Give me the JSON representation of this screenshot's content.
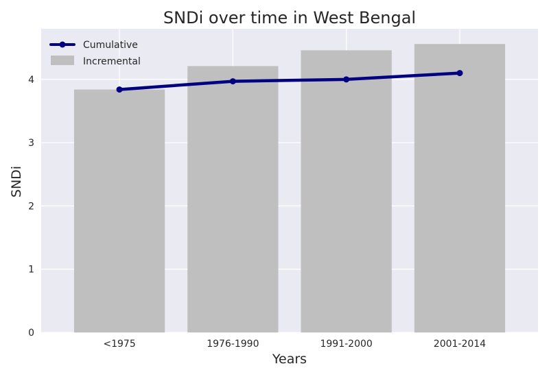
{
  "chart_data": {
    "type": "bar",
    "title": "SNDi over time in West Bengal",
    "xlabel": "Years",
    "ylabel": "SNDi",
    "categories": [
      "<1975",
      "1976-1990",
      "1991-2000",
      "2001-2014"
    ],
    "ylim": [
      0,
      4.8
    ],
    "yticks": [
      0,
      1,
      2,
      3,
      4
    ],
    "grid": true,
    "legend_position": "top-left",
    "series": [
      {
        "name": "Incremental",
        "type": "bar",
        "color": "#bfbfbf",
        "values": [
          3.84,
          4.21,
          4.46,
          4.56
        ]
      },
      {
        "name": "Cumulative",
        "type": "line",
        "color": "#000080",
        "values": [
          3.84,
          3.97,
          4.0,
          4.1
        ]
      }
    ],
    "colors": {
      "plot_background": "#eaeaf2",
      "grid": "#ffffff",
      "text": "#262626"
    }
  }
}
